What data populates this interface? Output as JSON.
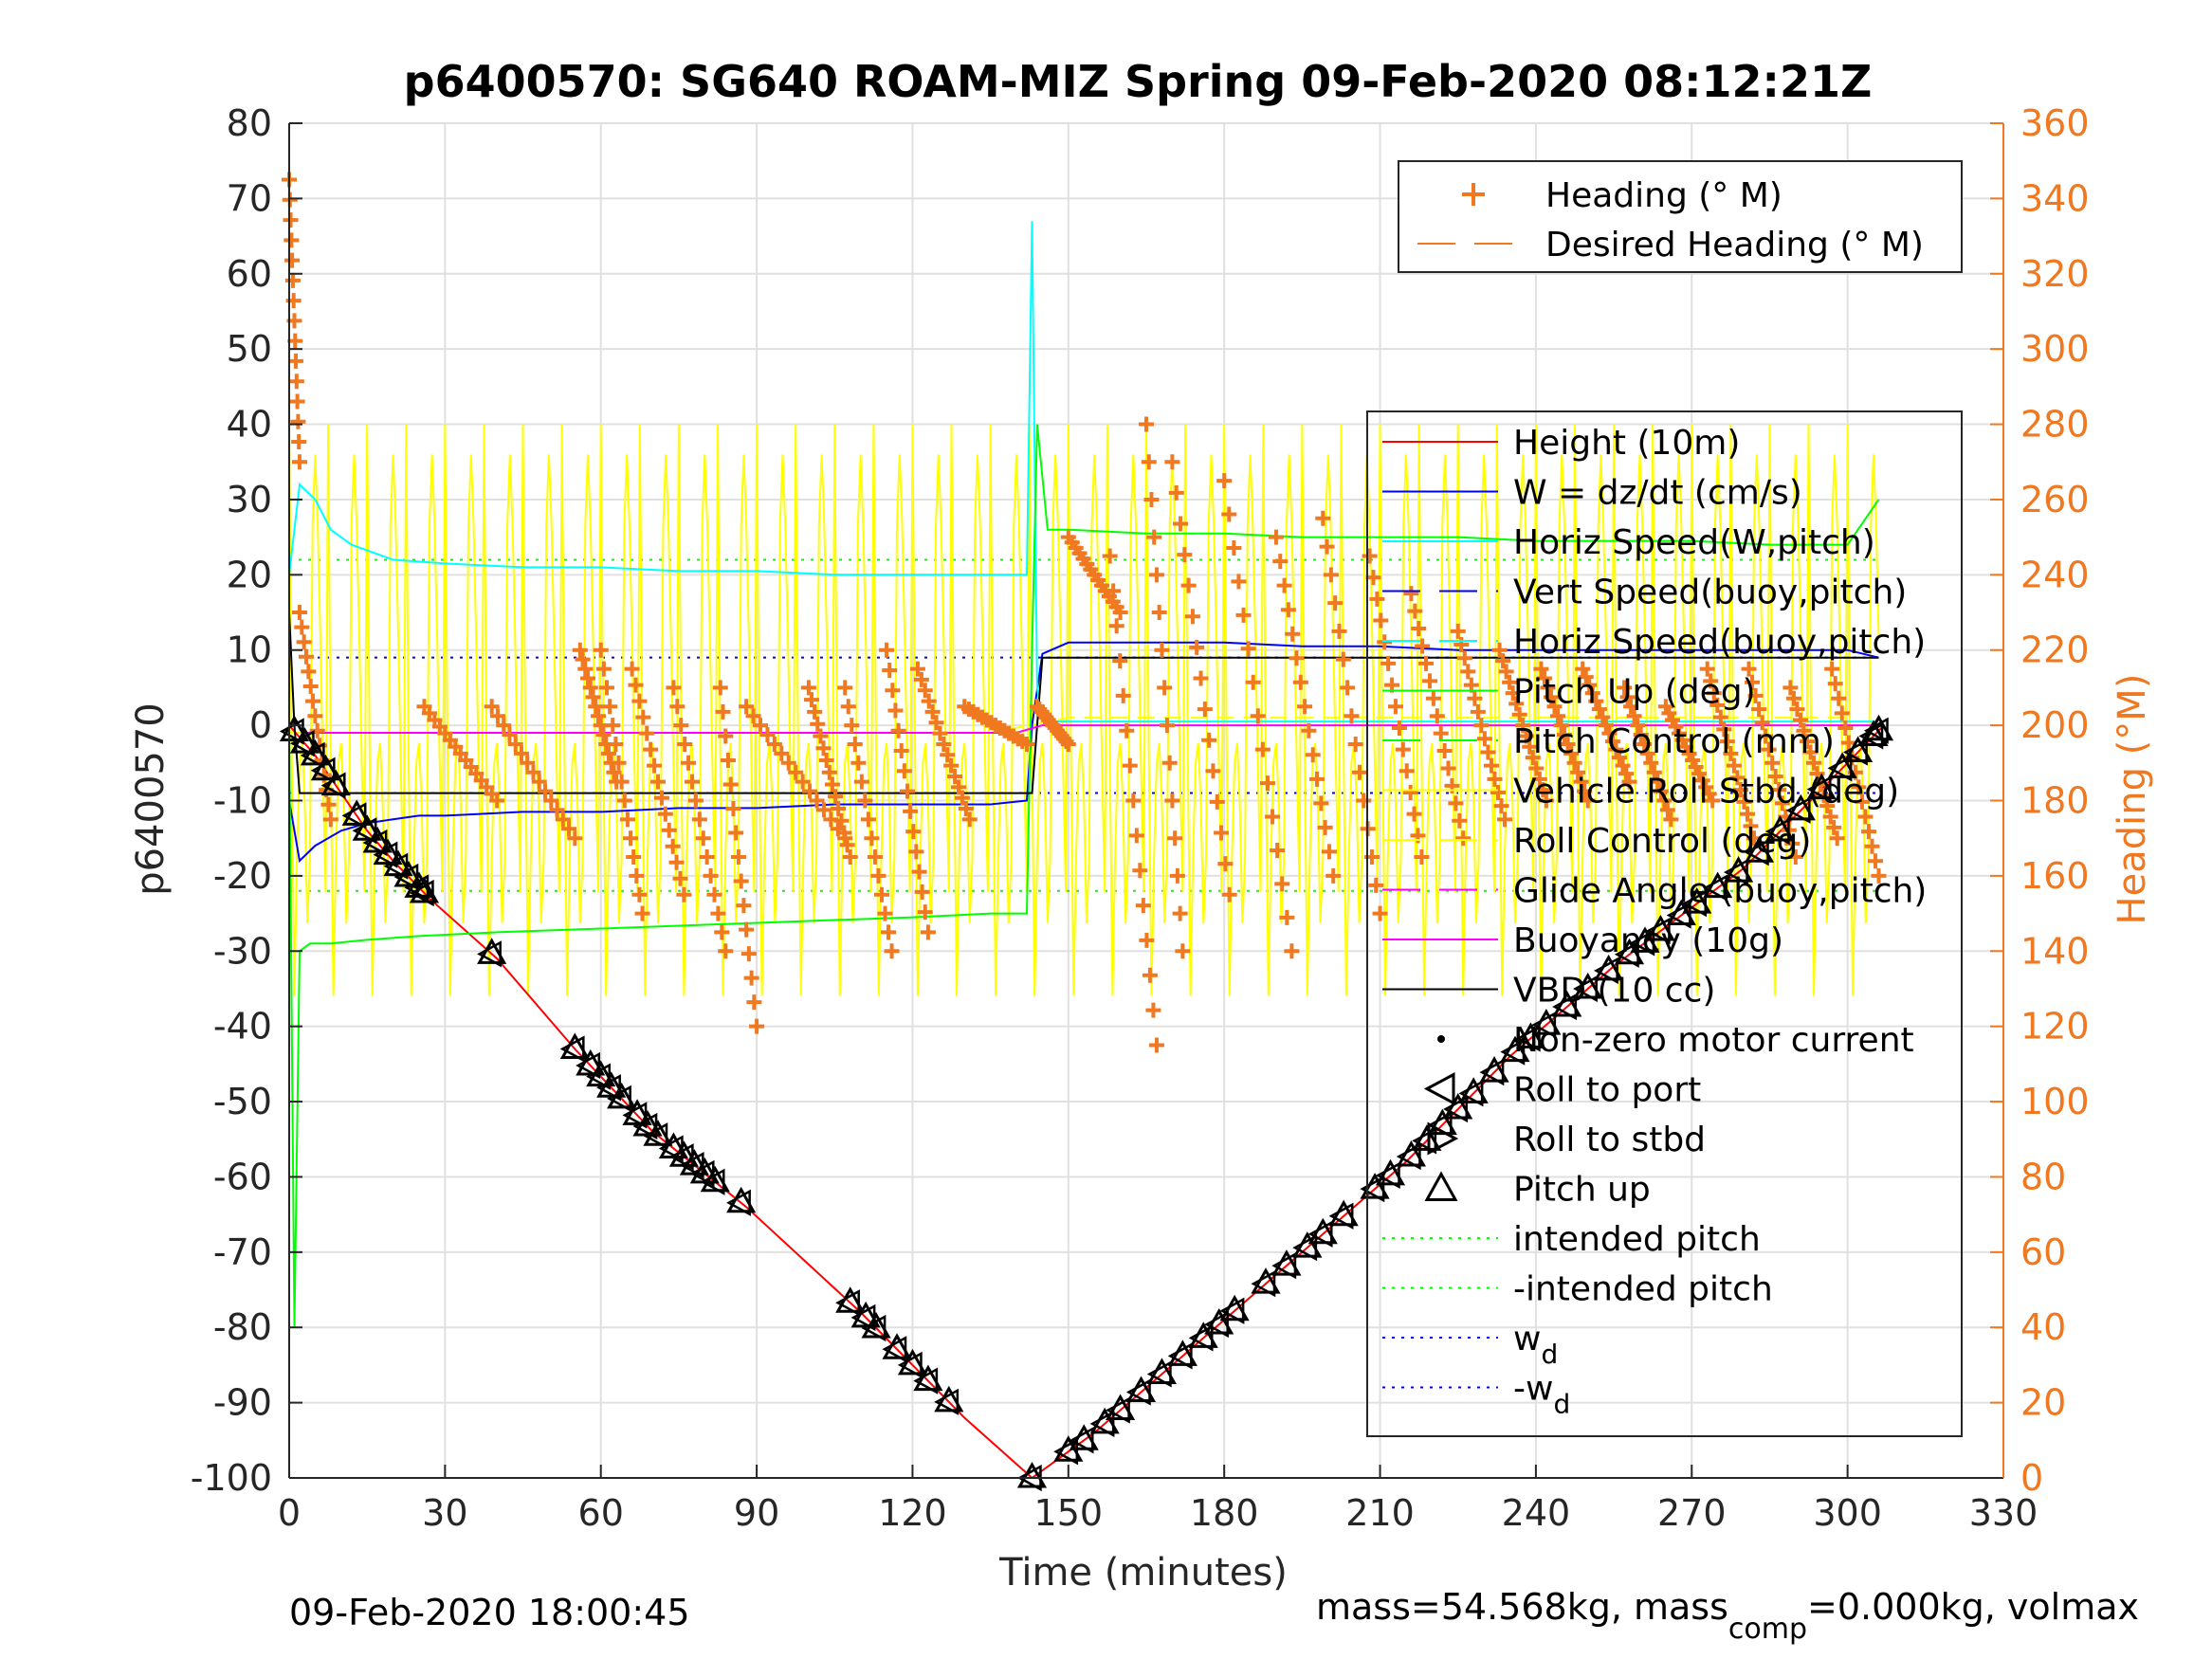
{
  "chart_data": {
    "type": "line",
    "title": "p6400570: SG640 ROAM-MIZ Spring 09-Feb-2020 08:12:21Z",
    "xlabel": "Time (minutes)",
    "ylabel_left": "p6400570",
    "ylabel_right": "Heading (°M)",
    "xlim": [
      0,
      330
    ],
    "ylim_left": [
      -100,
      80
    ],
    "ylim_right": [
      0,
      360
    ],
    "xticks": [
      "0",
      "30",
      "60",
      "90",
      "120",
      "150",
      "180",
      "210",
      "240",
      "270",
      "300",
      "330"
    ],
    "yticks_left": [
      "80",
      "70",
      "60",
      "50",
      "40",
      "30",
      "20",
      "10",
      "0",
      "-10",
      "-20",
      "-30",
      "-40",
      "-50",
      "-60",
      "-70",
      "-80",
      "-90",
      "-100"
    ],
    "yticks_right": [
      "360",
      "340",
      "320",
      "300",
      "280",
      "260",
      "240",
      "220",
      "200",
      "180",
      "160",
      "140",
      "120",
      "100",
      "80",
      "60",
      "40",
      "20",
      "0"
    ],
    "grid": true,
    "legend_top": {
      "placement": "top-right",
      "entries": [
        {
          "label": "Heading (° M)",
          "color": "#f07820",
          "style": "plus"
        },
        {
          "label": "Desired Heading (° M)",
          "color": "#f07820",
          "style": "dashed"
        }
      ]
    },
    "legend_main": {
      "placement": "right",
      "entries": [
        {
          "label": "Height (10m)",
          "color": "#ff0000",
          "style": "line"
        },
        {
          "label": "W = dz/dt (cm/s)",
          "color": "#0000ff",
          "style": "line"
        },
        {
          "label": "Horiz Speed(W,pitch)",
          "color": "#00ffff",
          "style": "line"
        },
        {
          "label": "Vert Speed(buoy,pitch)",
          "color": "#0000ff",
          "style": "dashed"
        },
        {
          "label": "Horiz Speed(buoy,pitch)",
          "color": "#00ffff",
          "style": "dashed"
        },
        {
          "label": "Pitch Up (deg)",
          "color": "#00ff00",
          "style": "line"
        },
        {
          "label": "Pitch Control (mm)",
          "color": "#00ff00",
          "style": "dashed"
        },
        {
          "label": "Vehicle Roll Stbd (deg)",
          "color": "#ffff00",
          "style": "line"
        },
        {
          "label": "Roll Control (deg)",
          "color": "#ffff00",
          "style": "dashed"
        },
        {
          "label": "Glide Angle (buoy,pitch)",
          "color": "#ff00ff",
          "style": "dashed"
        },
        {
          "label": "Buoyancy (10g)",
          "color": "#ff00ff",
          "style": "line"
        },
        {
          "label": "VBD (10 cc)",
          "color": "#000000",
          "style": "line"
        },
        {
          "label": "Non-zero motor current",
          "color": "#000000",
          "style": "dot"
        },
        {
          "label": "Roll to port",
          "color": "#000000",
          "style": "tri-left"
        },
        {
          "label": "Roll to stbd",
          "color": "#000000",
          "style": "tri-right"
        },
        {
          "label": "Pitch up",
          "color": "#000000",
          "style": "tri-up"
        },
        {
          "label": "intended pitch",
          "color": "#00ff00",
          "style": "dotted"
        },
        {
          "label": "-intended pitch",
          "color": "#00ff00",
          "style": "dotted"
        },
        {
          "label": "w",
          "sub": "d",
          "color": "#0000ff",
          "style": "dotted"
        },
        {
          "label": "-w",
          "sub": "d",
          "color": "#0000ff",
          "style": "dotted"
        }
      ]
    },
    "reference_lines": {
      "intended_pitch": 22,
      "minus_intended_pitch": -22,
      "w_d": 9,
      "minus_w_d": -9
    },
    "series": [
      {
        "name": "Height (10m)",
        "color": "#ff0000",
        "x": [
          0,
          5,
          10,
          15,
          20,
          27,
          40,
          55,
          70,
          88,
          110,
          130,
          143,
          155,
          175,
          195,
          215,
          235,
          255,
          280,
          300,
          307
        ],
        "y": [
          0,
          -4,
          -9,
          -14,
          -18,
          -23,
          -31,
          -43,
          -54,
          -64,
          -78,
          -92,
          -100,
          -94,
          -82,
          -70,
          -58,
          -44,
          -32,
          -19,
          -5,
          0
        ]
      },
      {
        "name": "W = dz/dt (cm/s)",
        "color": "#0000ff",
        "x": [
          0,
          2,
          5,
          10,
          15,
          20,
          25,
          30,
          45,
          60,
          75,
          90,
          105,
          120,
          135,
          142,
          143,
          145,
          150,
          165,
          180,
          195,
          210,
          225,
          240,
          255,
          270,
          285,
          300,
          306
        ],
        "y": [
          -10,
          -18,
          -16,
          -14,
          -13,
          -12.5,
          -12,
          -12,
          -11.5,
          -11.5,
          -11,
          -11,
          -10.5,
          -10.5,
          -10.5,
          -10,
          0,
          9.5,
          11,
          11,
          11,
          10.5,
          10.5,
          10,
          10,
          10,
          10,
          10,
          10,
          9
        ]
      },
      {
        "name": "Horiz Speed(W,pitch)",
        "color": "#00ffff",
        "x": [
          0,
          2,
          5,
          8,
          12,
          20,
          30,
          45,
          60,
          75,
          90,
          105,
          120,
          135,
          142,
          143,
          144,
          145,
          150,
          165,
          180,
          195,
          210,
          225,
          240,
          255,
          270,
          285,
          300,
          306
        ],
        "y": [
          20,
          32,
          30,
          26,
          24,
          22,
          21.5,
          21,
          21,
          20.5,
          20.5,
          20,
          20,
          20,
          20,
          67,
          5,
          0.5,
          0.5,
          0.5,
          0.5,
          0.5,
          0.5,
          0.5,
          0.5,
          0.5,
          0.5,
          0.5,
          0.5,
          0.5
        ]
      },
      {
        "name": "Pitch Up (deg)",
        "color": "#00ff00",
        "x": [
          0,
          1,
          2,
          4,
          8,
          15,
          25,
          40,
          60,
          80,
          100,
          120,
          135,
          142,
          143,
          144,
          146,
          150,
          165,
          180,
          195,
          210,
          225,
          240,
          255,
          270,
          285,
          300,
          306
        ],
        "y": [
          0,
          -80,
          -30,
          -29,
          -29,
          -28.5,
          -28,
          -27.5,
          -27,
          -26.5,
          -26,
          -25.5,
          -25,
          -25,
          10,
          40,
          26,
          26,
          25.5,
          25.5,
          25,
          25,
          25,
          24.5,
          24.5,
          24.5,
          24,
          24,
          30
        ]
      },
      {
        "name": "VBD (10 cc)",
        "color": "#000000",
        "x": [
          0,
          1,
          2,
          143,
          144,
          145,
          306
        ],
        "y": [
          15,
          0,
          -9,
          -9,
          0,
          9,
          9
        ]
      },
      {
        "name": "Buoyancy (10g)",
        "color": "#ff00ff",
        "x": [
          3,
          140,
          145,
          306
        ],
        "y": [
          -1,
          -1,
          0,
          0
        ]
      },
      {
        "name": "Vehicle Roll Stbd (deg)",
        "color": "#ffff00",
        "note": "oscillating roll trace between about -40 and 40 deg"
      }
    ],
    "heading": {
      "name": "Heading (° M)",
      "axis": "right",
      "color": "#f07820",
      "segments": [
        {
          "x0": 0,
          "x1": 2,
          "y0": 345,
          "y1": 270
        },
        {
          "x0": 2,
          "x1": 8,
          "y0": 230,
          "y1": 175
        },
        {
          "x0": 26,
          "x1": 40,
          "y0": 205,
          "y1": 180
        },
        {
          "x0": 39,
          "x1": 55,
          "y0": 205,
          "y1": 170
        },
        {
          "x0": 56,
          "x1": 63,
          "y0": 220,
          "y1": 185
        },
        {
          "x0": 60,
          "x1": 68,
          "y0": 220,
          "y1": 150
        },
        {
          "x0": 66,
          "x1": 76,
          "y0": 215,
          "y1": 155
        },
        {
          "x0": 74,
          "x1": 84,
          "y0": 210,
          "y1": 140
        },
        {
          "x0": 83,
          "x1": 90,
          "y0": 210,
          "y1": 120
        },
        {
          "x0": 88,
          "x1": 107,
          "y0": 205,
          "y1": 170
        },
        {
          "x0": 100,
          "x1": 108,
          "y0": 210,
          "y1": 165
        },
        {
          "x0": 107,
          "x1": 116,
          "y0": 210,
          "y1": 140
        },
        {
          "x0": 115,
          "x1": 123,
          "y0": 220,
          "y1": 145
        },
        {
          "x0": 121,
          "x1": 131,
          "y0": 215,
          "y1": 175
        },
        {
          "x0": 130,
          "x1": 142,
          "y0": 205,
          "y1": 195
        },
        {
          "x0": 144,
          "x1": 150,
          "y0": 205,
          "y1": 195
        },
        {
          "x0": 150,
          "x1": 160,
          "y0": 250,
          "y1": 230
        },
        {
          "x0": 158,
          "x1": 167,
          "y0": 245,
          "y1": 115
        },
        {
          "x0": 165,
          "x1": 172,
          "y0": 280,
          "y1": 140
        },
        {
          "x0": 170,
          "x1": 181,
          "y0": 270,
          "y1": 155
        },
        {
          "x0": 180,
          "x1": 193,
          "y0": 265,
          "y1": 140
        },
        {
          "x0": 190,
          "x1": 201,
          "y0": 250,
          "y1": 160
        },
        {
          "x0": 199,
          "x1": 210,
          "y0": 255,
          "y1": 150
        },
        {
          "x0": 208,
          "x1": 218,
          "y0": 245,
          "y1": 165
        },
        {
          "x0": 216,
          "x1": 226,
          "y0": 235,
          "y1": 170
        },
        {
          "x0": 225,
          "x1": 234,
          "y0": 225,
          "y1": 175
        },
        {
          "x0": 233,
          "x1": 242,
          "y0": 220,
          "y1": 180
        },
        {
          "x0": 241,
          "x1": 250,
          "y0": 215,
          "y1": 180
        },
        {
          "x0": 249,
          "x1": 258,
          "y0": 215,
          "y1": 185
        },
        {
          "x0": 257,
          "x1": 266,
          "y0": 210,
          "y1": 175
        },
        {
          "x0": 265,
          "x1": 274,
          "y0": 205,
          "y1": 180
        },
        {
          "x0": 273,
          "x1": 282,
          "y0": 215,
          "y1": 170
        },
        {
          "x0": 281,
          "x1": 290,
          "y0": 215,
          "y1": 165
        },
        {
          "x0": 289,
          "x1": 298,
          "y0": 210,
          "y1": 170
        },
        {
          "x0": 297,
          "x1": 306,
          "y0": 215,
          "y1": 160
        }
      ]
    },
    "pitch_up_markers": {
      "x": [
        1,
        3,
        5,
        7,
        9,
        13,
        15,
        17,
        19,
        21,
        23,
        25,
        26,
        39,
        55,
        58,
        60,
        62,
        64,
        67,
        69,
        71,
        74,
        76,
        78,
        80,
        82,
        87,
        108,
        111,
        113,
        117,
        120,
        123,
        127,
        143,
        150,
        153,
        157,
        160,
        164,
        168,
        172,
        176,
        179,
        182,
        188,
        192,
        196,
        199,
        203,
        209,
        212,
        216,
        219,
        222,
        225,
        228,
        232,
        236,
        239,
        242,
        246,
        250,
        254,
        258,
        261,
        264,
        268,
        271,
        275,
        279,
        283,
        287,
        291,
        295,
        299,
        302,
        305,
        306
      ]
    },
    "footer_left": "09-Feb-2020 18:00:45",
    "footer_right": {
      "part1": "mass=54.568kg, mass",
      "sub": "comp",
      "part2": "=0.000kg, volmax"
    }
  }
}
